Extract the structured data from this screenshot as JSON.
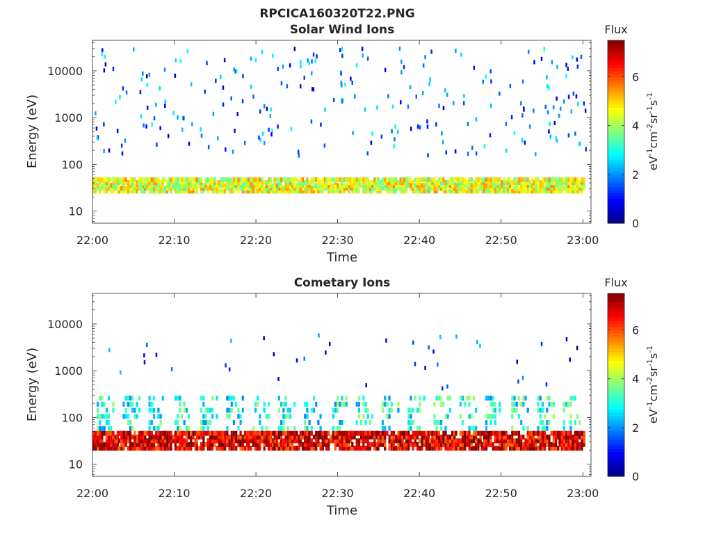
{
  "figure": {
    "title": "RPCICA160320T22.PNG"
  },
  "chart_data": [
    {
      "type": "heatmap",
      "title": "Solar Wind Ions",
      "xlabel": "Time",
      "ylabel": "Energy (eV)",
      "xticks": [
        "22:00",
        "22:10",
        "22:20",
        "22:30",
        "22:40",
        "22:50",
        "23:00"
      ],
      "xlim": [
        "22:00",
        "23:01"
      ],
      "yscale": "log",
      "yticks": [
        "10",
        "100",
        "1000",
        "10000"
      ],
      "ylim": [
        5.5,
        45000
      ],
      "colorbar": {
        "title": "Flux",
        "label": "eV-1cm-2sr-1s-1",
        "ticks": [
          "0",
          "2",
          "4",
          "6"
        ],
        "clim": [
          0,
          7.5
        ],
        "colormap": "jet"
      },
      "bands": [
        {
          "name": "low energy proton band",
          "energy_range_eV": [
            25,
            50
          ],
          "flux_typical": 4.5,
          "periodic": true
        },
        {
          "name": "sparse high-energy counts",
          "energy_range_eV": [
            150,
            30000
          ],
          "flux_typical": 1.5,
          "periodic": false
        }
      ]
    },
    {
      "type": "heatmap",
      "title": "Cometary Ions",
      "xlabel": "Time",
      "ylabel": "Energy (eV)",
      "xticks": [
        "22:00",
        "22:10",
        "22:20",
        "22:30",
        "22:40",
        "22:50",
        "23:00"
      ],
      "xlim": [
        "22:00",
        "23:01"
      ],
      "yscale": "log",
      "yticks": [
        "10",
        "100",
        "1000",
        "10000"
      ],
      "ylim": [
        5.5,
        45000
      ],
      "colorbar": {
        "title": "Flux",
        "label": "eV-1cm-2sr-1s-1",
        "ticks": [
          "0",
          "2",
          "4",
          "6"
        ],
        "clim": [
          0,
          7.5
        ],
        "colormap": "jet"
      },
      "bands": [
        {
          "name": "cometary ion band",
          "energy_range_eV": [
            20,
            50
          ],
          "flux_typical": 6.8,
          "periodic": true
        },
        {
          "name": "upward tails",
          "energy_range_eV": [
            50,
            300
          ],
          "flux_typical": 3.0,
          "periodic": true
        },
        {
          "name": "sparse high-energy counts",
          "energy_range_eV": [
            400,
            6000
          ],
          "flux_typical": 1.0,
          "periodic": false
        }
      ]
    }
  ]
}
